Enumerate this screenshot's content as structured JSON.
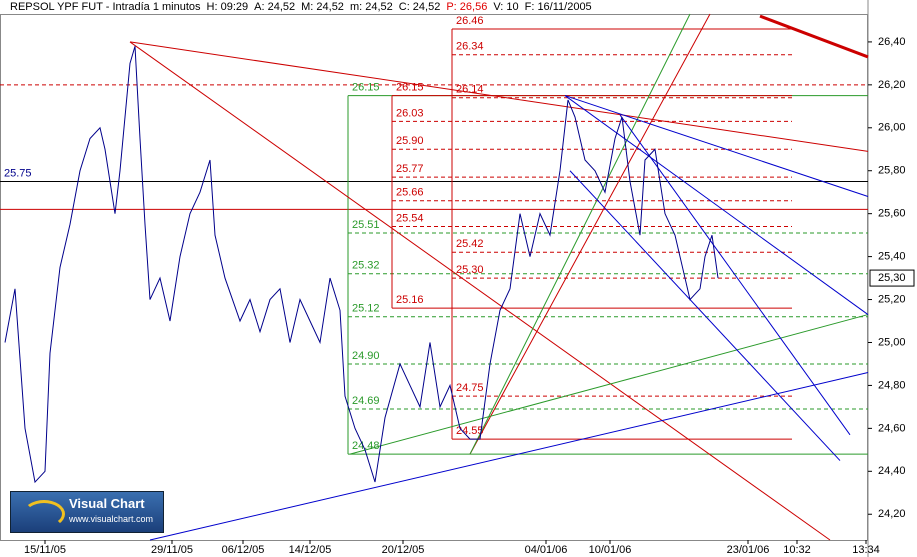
{
  "chart_data": {
    "type": "line",
    "header": [
      "REPSOL YPF FUT - Intradía 1 minutos",
      "H: 09:29",
      "A: 24,52",
      "M: 24,52",
      "m: 24,52",
      "C: 24,52",
      "P: 26,56",
      "V: 10",
      "F: 16/11/2005"
    ],
    "header_highlight": "#e00000",
    "logo": {
      "title": "Visual Chart",
      "url": "www.visualchart.com"
    },
    "xlim": [
      0,
      868
    ],
    "xticks": [
      {
        "value": 45,
        "label": "15/11/05"
      },
      {
        "value": 172,
        "label": "29/11/05"
      },
      {
        "value": 243,
        "label": "06/12/05"
      },
      {
        "value": 310,
        "label": "14/12/05"
      },
      {
        "value": 403,
        "label": "20/12/05"
      },
      {
        "value": 546,
        "label": "04/01/06"
      },
      {
        "value": 610,
        "label": "10/01/06"
      },
      {
        "value": 748,
        "label": "23/01/06"
      },
      {
        "value": 797,
        "label": "10:32"
      },
      {
        "value": 866,
        "label": "13:34"
      }
    ],
    "ylim": [
      24.08,
      26.53
    ],
    "yticks": [
      {
        "value": 24.2,
        "label": "24,20"
      },
      {
        "value": 24.4,
        "label": "24,40"
      },
      {
        "value": 24.6,
        "label": "24,60"
      },
      {
        "value": 24.8,
        "label": "24,80"
      },
      {
        "value": 25.0,
        "label": "25,00"
      },
      {
        "value": 25.2,
        "label": "25,20"
      },
      {
        "value": 25.4,
        "label": "25,40"
      },
      {
        "value": 25.6,
        "label": "25,60"
      },
      {
        "value": 25.8,
        "label": "25,80"
      },
      {
        "value": 26.0,
        "label": "26,00"
      },
      {
        "value": 26.2,
        "label": "26,20"
      },
      {
        "value": 26.4,
        "label": "26,40"
      }
    ],
    "last": {
      "value": 25.3,
      "label": "25,30"
    },
    "series": [
      {
        "color": "#00008b",
        "x": [
          5,
          15,
          25,
          35,
          45,
          50,
          60,
          70,
          80,
          90,
          100,
          105,
          115,
          120,
          130,
          135,
          140,
          145,
          150,
          160,
          170,
          180,
          190,
          200,
          210,
          215,
          225,
          240,
          250,
          260,
          270,
          280,
          290,
          300,
          310,
          320,
          330,
          340,
          345,
          355,
          365,
          375,
          385,
          400,
          410,
          420,
          430,
          440,
          450,
          460,
          470,
          480,
          490,
          500,
          510,
          520,
          530,
          540,
          550,
          560,
          568,
          575,
          585,
          595,
          605,
          615,
          622,
          630,
          640,
          645,
          655,
          665,
          675,
          685,
          690,
          700,
          705,
          712,
          718
        ],
        "values": [
          25.0,
          25.25,
          24.6,
          24.35,
          24.4,
          24.95,
          25.35,
          25.55,
          25.8,
          25.95,
          26.0,
          25.9,
          25.6,
          25.8,
          26.3,
          26.38,
          25.95,
          25.55,
          25.2,
          25.3,
          25.1,
          25.4,
          25.6,
          25.7,
          25.85,
          25.5,
          25.3,
          25.1,
          25.2,
          25.05,
          25.2,
          25.25,
          25.0,
          25.2,
          25.1,
          25.0,
          25.3,
          25.15,
          24.75,
          24.6,
          24.5,
          24.35,
          24.65,
          24.9,
          24.8,
          24.7,
          25.0,
          24.7,
          24.8,
          24.6,
          24.55,
          24.55,
          24.9,
          25.15,
          25.25,
          25.6,
          25.4,
          25.6,
          25.5,
          25.8,
          26.13,
          26.05,
          25.85,
          25.8,
          25.7,
          25.95,
          26.05,
          25.75,
          25.5,
          25.85,
          25.9,
          25.6,
          25.5,
          25.3,
          25.2,
          25.25,
          25.4,
          25.5,
          25.3
        ]
      }
    ],
    "hlines": [
      {
        "value": 25.75,
        "label": "25.75",
        "color": "#000000",
        "dash": false
      },
      {
        "value": 25.62,
        "color": "#cc0000",
        "dash": false
      },
      {
        "value": 26.2,
        "color": "#cc0000",
        "dash": true
      }
    ],
    "fib_levels": [
      {
        "color": "#2a9a2a",
        "x": [
          348,
          868
        ],
        "levels": [
          {
            "value": 26.15,
            "label": "26.15"
          },
          {
            "value": 25.51,
            "label": "25.51"
          },
          {
            "value": 25.32,
            "label": "25.32"
          },
          {
            "value": 25.12,
            "label": "25.12"
          },
          {
            "value": 24.9,
            "label": "24.90"
          },
          {
            "value": 24.69,
            "label": "24.69"
          },
          {
            "value": 24.48,
            "label": "24.48"
          }
        ]
      },
      {
        "color": "#cc0000",
        "x": [
          392,
          792
        ],
        "levels": [
          {
            "value": 26.15,
            "label": "26.15"
          },
          {
            "value": 26.03,
            "label": "26.03"
          },
          {
            "value": 25.9,
            "label": "25.90"
          },
          {
            "value": 25.77,
            "label": "25.77"
          },
          {
            "value": 25.66,
            "label": "25.66"
          },
          {
            "value": 25.54,
            "label": "25.54"
          },
          {
            "value": 25.16,
            "label": "25.16"
          }
        ]
      },
      {
        "color": "#cc0000",
        "x": [
          452,
          792
        ],
        "levels": [
          {
            "value": 26.46,
            "label": "26.46"
          },
          {
            "value": 26.34,
            "label": "26.34"
          },
          {
            "value": 26.14,
            "label": "26.14"
          },
          {
            "value": 25.42,
            "label": "25.42"
          },
          {
            "value": 25.3,
            "label": "25.30"
          },
          {
            "value": 24.75,
            "label": "24.75"
          },
          {
            "value": 24.55,
            "label": "24.55"
          }
        ]
      }
    ],
    "trendlines": [
      {
        "color": "#cc0000",
        "x": [
          130,
          868
        ],
        "values": [
          26.4,
          25.89
        ]
      },
      {
        "color": "#cc0000",
        "x": [
          130,
          830
        ],
        "values": [
          26.4,
          24.08
        ]
      },
      {
        "color": "#cc0000",
        "x": [
          760,
          868
        ],
        "values": [
          26.52,
          26.33
        ],
        "width": 3
      },
      {
        "color": "#cc0000",
        "x": [
          470,
          710
        ],
        "values": [
          24.48,
          26.53
        ]
      },
      {
        "color": "#2a9a2a",
        "x": [
          470,
          690
        ],
        "values": [
          24.48,
          26.53
        ]
      },
      {
        "color": "#2a9a2a",
        "x": [
          350,
          868
        ],
        "values": [
          24.48,
          25.13
        ]
      },
      {
        "color": "#0000cc",
        "x": [
          150,
          868
        ],
        "values": [
          24.08,
          24.86
        ]
      },
      {
        "color": "#0000cc",
        "x": [
          565,
          868
        ],
        "values": [
          26.15,
          25.68
        ]
      },
      {
        "color": "#0000cc",
        "x": [
          565,
          868
        ],
        "values": [
          26.15,
          25.13
        ]
      },
      {
        "color": "#0000cc",
        "x": [
          620,
          850
        ],
        "values": [
          26.06,
          24.57
        ]
      },
      {
        "color": "#0000cc",
        "x": [
          570,
          840
        ],
        "values": [
          25.8,
          24.45
        ]
      }
    ]
  }
}
